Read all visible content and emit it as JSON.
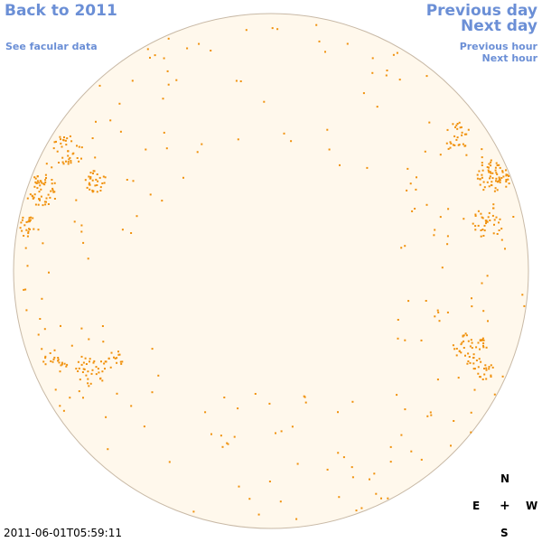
{
  "nav": {
    "back_label": "Back to 2011",
    "facular_label": "See facular data",
    "prev_day_label": "Previous day",
    "next_day_label": "Next day",
    "prev_hour_label": "Previous hour",
    "next_hour_label": "Next hour"
  },
  "compass": {
    "north": "N",
    "east": "E",
    "center": "+",
    "west": "W",
    "south": "S"
  },
  "timestamp": "2011-06-01T05:59:11",
  "colors": {
    "link": "#6b8fd6",
    "disk_fill": "#fff8ec",
    "disk_edge": "#c8b9a6",
    "spots": "#f0910c"
  }
}
